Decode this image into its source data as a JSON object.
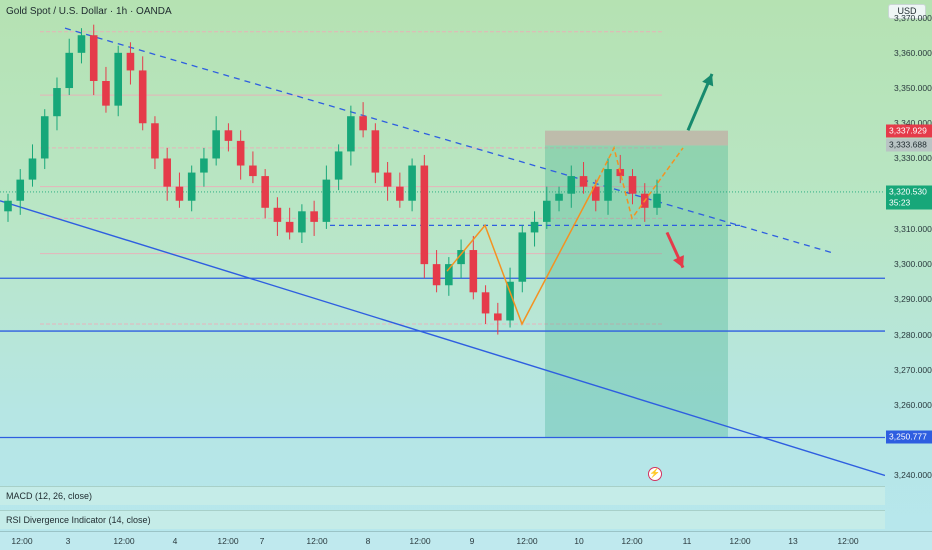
{
  "header": {
    "title": "Gold Spot / U.S. Dollar · 1h · OANDA",
    "currency": "USD"
  },
  "price_axis": {
    "ticks": [
      "3,370.000",
      "3,360.000",
      "3,350.000",
      "3,340.000",
      "3,330.000",
      "3,310.000",
      "3,300.000",
      "3,290.000",
      "3,280.000",
      "3,270.000",
      "3,260.000",
      "3,240.000"
    ],
    "tick_values": [
      3370,
      3360,
      3350,
      3340,
      3330,
      3310,
      3300,
      3290,
      3280,
      3270,
      3260,
      3240
    ],
    "labels": [
      {
        "text": "3,337.929",
        "value": 3337.929,
        "style": "red"
      },
      {
        "text": "3,333.688",
        "value": 3333.688,
        "style": "gray"
      },
      {
        "text": "3,320.530",
        "value": 3320.53,
        "style": "green"
      },
      {
        "text": "35:23",
        "value": 3317.4,
        "style": "green"
      },
      {
        "text": "3,250.777",
        "value": 3250.777,
        "style": "blue"
      }
    ]
  },
  "time_axis": {
    "ticks": [
      "12:00",
      "3",
      "12:00",
      "4",
      "12:00",
      "7",
      "12:00",
      "8",
      "12:00",
      "9",
      "12:00",
      "10",
      "12:00",
      "11",
      "12:00",
      "13",
      "12:00"
    ]
  },
  "indicators": {
    "macd": "MACD (12, 26, close)",
    "rsi": "RSI Divergence Indicator (14, close)"
  },
  "colors": {
    "bull": "#17a779",
    "bear": "#e53b4a",
    "trendline": "#2e5ee0",
    "orange": "#f39222"
  },
  "chart_data": {
    "type": "candlestick",
    "symbol": "Gold Spot / U.S. Dollar",
    "interval": "1h",
    "ylim": [
      3237,
      3375
    ],
    "horizontal_levels": [
      3296,
      3281,
      3250.777,
      3311
    ],
    "candles_close_path": [
      3318,
      3324,
      3330,
      3342,
      3350,
      3360,
      3365,
      3352,
      3345,
      3360,
      3355,
      3340,
      3330,
      3322,
      3318,
      3326,
      3330,
      3338,
      3335,
      3328,
      3325,
      3316,
      3312,
      3309,
      3315,
      3312,
      3324,
      3332,
      3342,
      3338,
      3326,
      3322,
      3318,
      3328,
      3300,
      3294,
      3300,
      3304,
      3292,
      3286,
      3284,
      3295,
      3309,
      3312,
      3318,
      3320,
      3325,
      3322,
      3318,
      3327,
      3325,
      3320,
      3316,
      3320
    ]
  }
}
